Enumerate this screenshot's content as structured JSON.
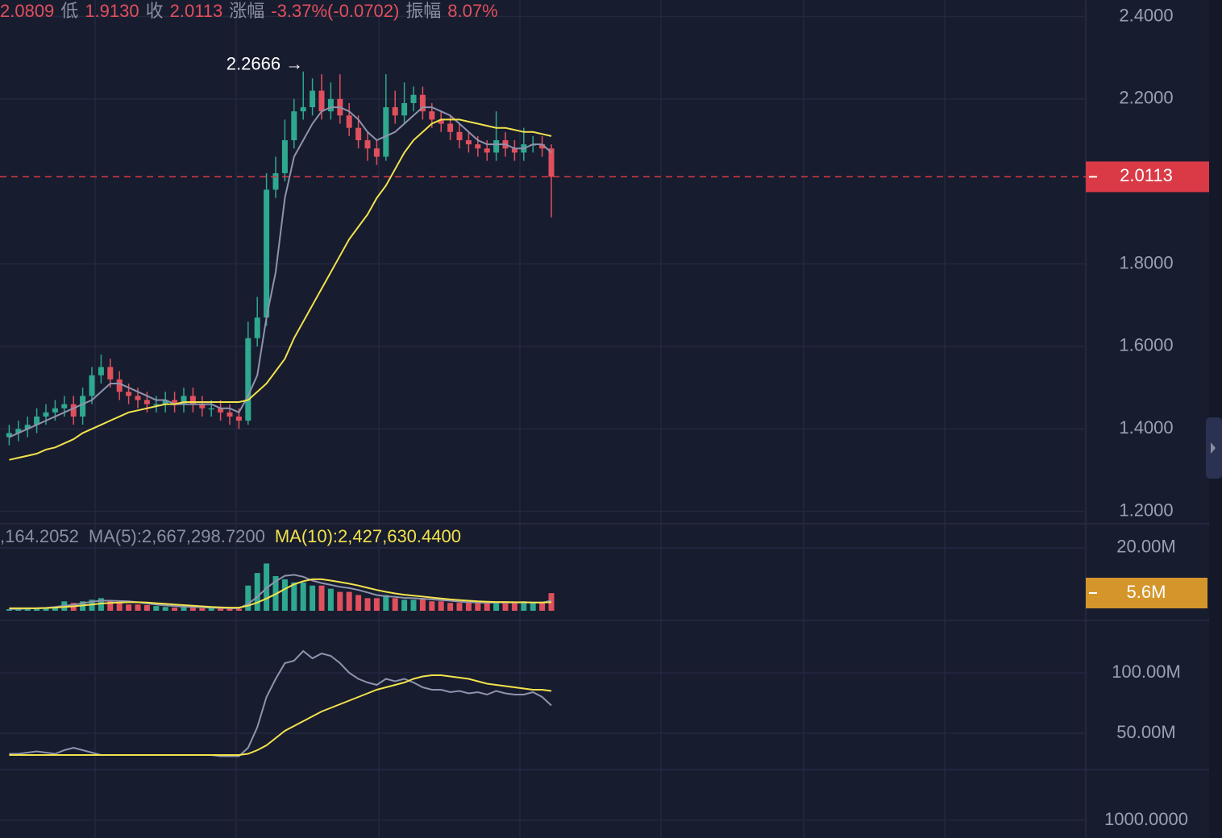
{
  "header": {
    "items": [
      {
        "text": "2.0809",
        "kind": "value"
      },
      {
        "text": "低",
        "kind": "label"
      },
      {
        "text": "1.9130",
        "kind": "value"
      },
      {
        "text": "收",
        "kind": "label"
      },
      {
        "text": "2.0113",
        "kind": "value"
      },
      {
        "text": "涨幅",
        "kind": "label"
      },
      {
        "text": "-3.37%(-0.0702)",
        "kind": "value"
      },
      {
        "text": "振幅",
        "kind": "label"
      },
      {
        "text": "8.07%",
        "kind": "value"
      }
    ]
  },
  "volume_header": {
    "items": [
      {
        "text": ",164.2052",
        "color": "#8a8fa3"
      },
      {
        "text": "MA(5):2,667,298.7200",
        "color": "#8a8fa3"
      },
      {
        "text": "MA(10):2,427,630.4400",
        "color": "#f2e34c"
      }
    ]
  },
  "chart_data": [
    {
      "type": "candlestick",
      "up_color": "#2ea88f",
      "down_color": "#e0505c",
      "ylim": [
        1.17,
        2.44
      ],
      "yticks": [
        {
          "value": 2.4,
          "label": "2.4000"
        },
        {
          "value": 2.2,
          "label": "2.2000"
        },
        {
          "value": 1.8,
          "label": "1.8000"
        },
        {
          "value": 1.6,
          "label": "1.6000"
        },
        {
          "value": 1.4,
          "label": "1.4000"
        },
        {
          "value": 1.2,
          "label": "1.2000"
        }
      ],
      "grid": true,
      "current_price": 2.0113,
      "current_color": "#d93a45",
      "annotation": {
        "text": "2.2666 →",
        "index": 32
      },
      "open": [
        1.38,
        1.39,
        1.4,
        1.41,
        1.43,
        1.44,
        1.45,
        1.46,
        1.43,
        1.48,
        1.53,
        1.55,
        1.52,
        1.49,
        1.48,
        1.47,
        1.46,
        1.46,
        1.47,
        1.46,
        1.48,
        1.46,
        1.45,
        1.45,
        1.44,
        1.43,
        1.42,
        1.62,
        1.67,
        1.98,
        2.02,
        2.1,
        2.17,
        2.18,
        2.22,
        2.17,
        2.2,
        2.16,
        2.13,
        2.1,
        2.08,
        2.06,
        2.18,
        2.16,
        2.19,
        2.21,
        2.17,
        2.15,
        2.14,
        2.12,
        2.1,
        2.09,
        2.08,
        2.07,
        2.1,
        2.08,
        2.07,
        2.09,
        2.09,
        2.08
      ],
      "high": [
        1.41,
        1.42,
        1.43,
        1.45,
        1.46,
        1.47,
        1.48,
        1.48,
        1.5,
        1.55,
        1.58,
        1.57,
        1.54,
        1.51,
        1.5,
        1.49,
        1.48,
        1.49,
        1.49,
        1.5,
        1.5,
        1.48,
        1.47,
        1.47,
        1.46,
        1.45,
        1.66,
        1.72,
        2.02,
        2.06,
        2.15,
        2.2,
        2.2666,
        2.25,
        2.26,
        2.24,
        2.26,
        2.19,
        2.16,
        2.12,
        2.1,
        2.26,
        2.22,
        2.24,
        2.23,
        2.23,
        2.19,
        2.17,
        2.16,
        2.14,
        2.12,
        2.11,
        2.1,
        2.17,
        2.12,
        2.1,
        2.13,
        2.11,
        2.11,
        2.09
      ],
      "low": [
        1.36,
        1.37,
        1.38,
        1.39,
        1.41,
        1.42,
        1.43,
        1.41,
        1.41,
        1.46,
        1.51,
        1.5,
        1.47,
        1.46,
        1.45,
        1.44,
        1.44,
        1.44,
        1.44,
        1.44,
        1.44,
        1.43,
        1.43,
        1.42,
        1.41,
        1.4,
        1.41,
        1.6,
        1.65,
        1.96,
        2.0,
        2.08,
        2.15,
        2.16,
        2.15,
        2.15,
        2.14,
        2.11,
        2.08,
        2.05,
        2.04,
        2.05,
        2.14,
        2.14,
        2.17,
        2.15,
        2.13,
        2.12,
        2.1,
        2.08,
        2.07,
        2.06,
        2.05,
        2.05,
        2.06,
        2.05,
        2.05,
        2.07,
        2.06,
        1.913
      ],
      "close": [
        1.39,
        1.4,
        1.41,
        1.43,
        1.44,
        1.45,
        1.46,
        1.43,
        1.48,
        1.53,
        1.55,
        1.52,
        1.49,
        1.48,
        1.47,
        1.46,
        1.46,
        1.47,
        1.46,
        1.48,
        1.46,
        1.45,
        1.45,
        1.44,
        1.43,
        1.42,
        1.62,
        1.67,
        1.98,
        2.02,
        2.1,
        2.17,
        2.18,
        2.22,
        2.17,
        2.2,
        2.16,
        2.13,
        2.1,
        2.08,
        2.06,
        2.18,
        2.16,
        2.19,
        2.21,
        2.17,
        2.15,
        2.14,
        2.12,
        2.1,
        2.09,
        2.08,
        2.07,
        2.1,
        2.08,
        2.07,
        2.09,
        2.09,
        2.08,
        2.0113
      ],
      "lines": [
        {
          "color": "#8f93ad",
          "values": [
            1.38,
            1.39,
            1.4,
            1.41,
            1.42,
            1.43,
            1.44,
            1.45,
            1.46,
            1.47,
            1.49,
            1.51,
            1.51,
            1.5,
            1.49,
            1.48,
            1.47,
            1.47,
            1.46,
            1.46,
            1.46,
            1.46,
            1.46,
            1.45,
            1.45,
            1.44,
            1.48,
            1.53,
            1.67,
            1.78,
            1.96,
            2.06,
            2.1,
            2.14,
            2.17,
            2.18,
            2.18,
            2.17,
            2.15,
            2.12,
            2.1,
            2.11,
            2.12,
            2.14,
            2.16,
            2.18,
            2.18,
            2.17,
            2.16,
            2.14,
            2.12,
            2.1,
            2.09,
            2.09,
            2.09,
            2.08,
            2.08,
            2.09,
            2.09,
            2.07
          ]
        },
        {
          "color": "#f2e34c",
          "values": [
            1.325,
            1.33,
            1.335,
            1.34,
            1.35,
            1.355,
            1.365,
            1.375,
            1.39,
            1.4,
            1.41,
            1.42,
            1.43,
            1.44,
            1.445,
            1.45,
            1.455,
            1.46,
            1.46,
            1.465,
            1.465,
            1.465,
            1.465,
            1.465,
            1.465,
            1.465,
            1.47,
            1.49,
            1.51,
            1.54,
            1.57,
            1.62,
            1.66,
            1.7,
            1.74,
            1.78,
            1.82,
            1.86,
            1.89,
            1.92,
            1.96,
            1.99,
            2.03,
            2.07,
            2.1,
            2.12,
            2.14,
            2.15,
            2.15,
            2.15,
            2.145,
            2.14,
            2.135,
            2.13,
            2.13,
            2.125,
            2.12,
            2.12,
            2.115,
            2.11
          ]
        }
      ]
    },
    {
      "type": "bar",
      "ylim": [
        0,
        22
      ],
      "yticks": [
        {
          "value": 20,
          "label": "20.00M"
        }
      ],
      "grid": true,
      "current_value": 5.6,
      "current_label": "5.6M",
      "current_color": "#d4962a",
      "values": [
        0.5,
        0.6,
        0.7,
        0.8,
        0.9,
        1,
        3,
        2.5,
        3,
        3.5,
        4,
        3,
        2.5,
        2,
        2,
        1.8,
        1.5,
        1.2,
        1,
        1.2,
        1,
        0.8,
        0.8,
        0.7,
        0.8,
        0.6,
        8,
        12,
        15,
        11,
        10,
        9,
        9,
        8,
        8,
        7,
        6,
        6,
        5,
        4,
        4,
        5,
        4,
        3.5,
        3.5,
        4,
        3,
        3,
        2.5,
        2.5,
        2.5,
        2.5,
        2.5,
        3,
        2.5,
        2.5,
        3,
        2.5,
        2.5,
        5.6
      ],
      "lines": [
        {
          "color": "#8f93ad",
          "values": [
            0.6,
            0.6,
            0.7,
            0.8,
            0.9,
            1.2,
            1.6,
            1.9,
            2.4,
            2.9,
            3.2,
            3.2,
            3.1,
            3.0,
            2.7,
            2.3,
            2.0,
            1.7,
            1.5,
            1.3,
            1.2,
            1.1,
            1.0,
            0.9,
            0.8,
            0.8,
            2.2,
            4.4,
            7.2,
            9.4,
            11.1,
            11.4,
            10.8,
            9.6,
            8.8,
            8.2,
            7.6,
            7.2,
            6.6,
            5.8,
            5.0,
            4.6,
            4.4,
            4.1,
            4.0,
            3.8,
            3.6,
            3.4,
            3.2,
            2.9,
            2.7,
            2.6,
            2.5,
            2.6,
            2.6,
            2.6,
            2.6,
            2.6,
            2.6,
            3.2
          ]
        },
        {
          "color": "#f2e34c",
          "values": [
            0.8,
            0.8,
            0.8,
            0.8,
            0.9,
            1.0,
            1.2,
            1.4,
            1.7,
            2.0,
            2.3,
            2.5,
            2.6,
            2.7,
            2.7,
            2.6,
            2.4,
            2.2,
            2.0,
            1.8,
            1.6,
            1.4,
            1.2,
            1.1,
            1.0,
            1.0,
            1.6,
            2.6,
            3.9,
            5.3,
            6.9,
            8.4,
            9.4,
            10.0,
            10.0,
            9.6,
            9.1,
            8.6,
            8.0,
            7.3,
            6.6,
            6.0,
            5.5,
            5.1,
            4.8,
            4.5,
            4.2,
            3.9,
            3.6,
            3.4,
            3.2,
            3.0,
            2.9,
            2.8,
            2.8,
            2.7,
            2.7,
            2.6,
            2.6,
            2.7
          ]
        }
      ]
    },
    {
      "type": "line",
      "ylim": [
        20,
        143.3
      ],
      "yticks": [
        {
          "value": 100,
          "label": "100.00M"
        },
        {
          "value": 50,
          "label": "50.00M"
        }
      ],
      "grid": true,
      "lines": [
        {
          "color": "#8f93ad",
          "values": [
            33,
            33,
            34,
            35,
            34,
            33,
            36,
            38,
            36,
            34,
            32,
            32,
            32,
            32,
            32,
            32,
            32,
            32,
            32,
            32,
            32,
            32,
            32,
            31,
            31,
            31,
            38,
            55,
            80,
            95,
            108,
            110,
            118,
            112,
            116,
            114,
            108,
            100,
            95,
            92,
            90,
            95,
            93,
            95,
            92,
            88,
            86,
            86,
            84,
            85,
            83,
            84,
            82,
            85,
            83,
            82,
            82,
            84,
            80,
            73
          ]
        },
        {
          "color": "#f2e34c",
          "values": [
            32,
            32,
            32,
            32,
            32,
            32,
            32,
            32,
            32,
            32,
            32,
            32,
            32,
            32,
            32,
            32,
            32,
            32,
            32,
            32,
            32,
            32,
            32,
            32,
            32,
            32,
            33,
            36,
            40,
            46,
            52,
            56,
            60,
            64,
            68,
            71,
            74,
            77,
            80,
            83,
            86,
            88,
            90,
            92,
            95,
            97,
            98,
            98,
            97,
            96,
            95,
            93,
            91,
            90,
            89,
            88,
            87,
            86,
            86,
            85
          ]
        }
      ]
    },
    {
      "type": "line",
      "ylim": [
        900,
        1286
      ],
      "yticks": [
        {
          "value": 1000,
          "label": "1000.0000"
        }
      ],
      "grid": true,
      "lines": []
    }
  ]
}
